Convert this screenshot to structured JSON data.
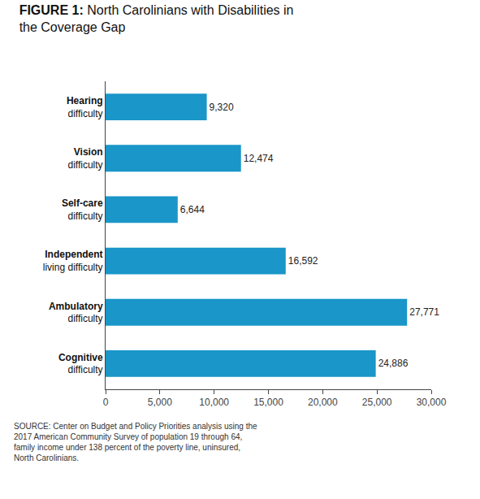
{
  "chart_data": {
    "type": "bar",
    "orientation": "horizontal",
    "title": "FIGURE 1: North Carolinians with Disabilities in\nthe Coverage Gap",
    "categories": [
      "Cognitive\ndifficulty",
      "Ambulatory\ndifficulty",
      "Independent\nliving difficulty",
      "Self-care\ndifficulty",
      "Vision\ndifficulty",
      "Hearing\ndifficulty"
    ],
    "values": [
      24886,
      27771,
      16592,
      6644,
      12474,
      9320
    ],
    "value_labels": [
      "24,886",
      "27,771",
      "16,592",
      "6,644",
      "12,474",
      "9,320"
    ],
    "data_labels": true,
    "color": "#1a96c8",
    "xlim": [
      0,
      30000
    ],
    "xticks": [
      0,
      {
        "value": 5000,
        "label": "5,000"
      },
      {
        "value": 10000,
        "label": "10,000"
      },
      {
        "value": 15000,
        "label": "15,000"
      },
      {
        "value": 20000,
        "label": "20,000"
      },
      {
        "value": 25000,
        "label": "25,000"
      },
      {
        "value": 30000,
        "label": "30,000"
      }
    ],
    "grid": false,
    "annotations": [
      "SOURCE: Center on Budget and Policy Priorities analysis using the\n2017 American Community Survey of population 19 through 64,\nfamily income under 138 percent of the poverty line, uninsured,\nNorth Carolinians."
    ]
  }
}
